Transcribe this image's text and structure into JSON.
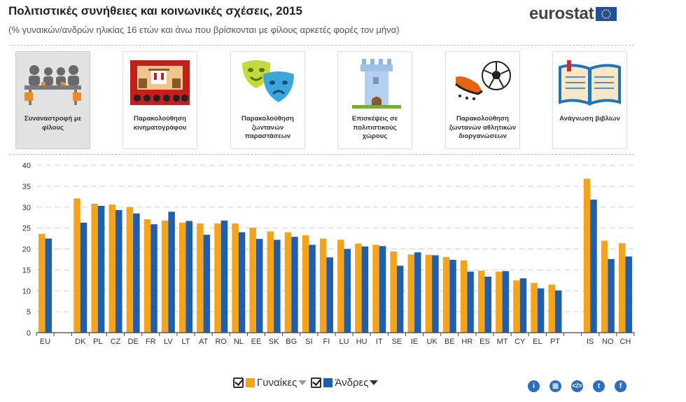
{
  "header": {
    "title": "Πολιτιστικές συνήθειες και κοινωνικές σχέσεις, 2015",
    "subtitle": "(% γυναικών/ανδρών ηλικίας 16 ετών και άνω που βρίσκονται με φίλους αρκετές φορές τον μήνα)",
    "logo_text": "eurostat"
  },
  "categories": [
    {
      "label": "Συναναστροφή με φίλους",
      "icon": "friends-meeting-icon",
      "active": true
    },
    {
      "label": "Παρακολούθηση κινηματογράφου",
      "icon": "cinema-icon",
      "active": false
    },
    {
      "label": "Παρακολούθηση ζωντανών παραστάσεων",
      "icon": "theatre-masks-icon",
      "active": false
    },
    {
      "label": "Επισκέψεις σε πολιτιστικούς χώρους",
      "icon": "tower-icon",
      "active": false
    },
    {
      "label": "Παρακολούθηση ζωντανών αθλητικών διοργανώσεων",
      "icon": "football-icon",
      "active": false
    },
    {
      "label": "Ανάγνωση βιβλίων",
      "icon": "open-book-icon",
      "active": false
    }
  ],
  "legend": {
    "women_label": "Γυναίκες",
    "men_label": "Άνδρες"
  },
  "colors": {
    "women": "#f5a31a",
    "men": "#1f5fae",
    "grid": "#cfcfcf"
  },
  "social_icons": [
    "info-icon",
    "table-icon",
    "embed-icon",
    "twitter-icon",
    "facebook-icon"
  ],
  "chart_data": {
    "type": "bar",
    "categories": [
      "EU",
      "DK",
      "PL",
      "CZ",
      "DE",
      "FR",
      "LV",
      "LT",
      "AT",
      "RO",
      "NL",
      "EE",
      "SK",
      "BG",
      "SI",
      "FI",
      "LU",
      "HU",
      "IT",
      "SE",
      "IE",
      "UK",
      "BE",
      "HR",
      "ES",
      "MT",
      "CY",
      "EL",
      "PT",
      "IS",
      "NO",
      "CH"
    ],
    "gaps_after": [
      "EU",
      "PT"
    ],
    "series": [
      {
        "name": "Γυναίκες",
        "values": [
          23.6,
          32.1,
          30.8,
          30.6,
          30.0,
          27.1,
          26.8,
          26.3,
          26.1,
          26.1,
          26.1,
          25.1,
          24.2,
          24.0,
          23.3,
          22.5,
          22.2,
          21.3,
          21.0,
          19.4,
          18.7,
          18.6,
          18.1,
          17.3,
          14.8,
          14.6,
          12.5,
          11.9,
          11.5,
          36.8,
          22.0,
          21.4
        ]
      },
      {
        "name": "Άνδρες",
        "values": [
          22.5,
          26.3,
          30.3,
          29.3,
          28.5,
          25.9,
          28.9,
          26.7,
          23.4,
          26.8,
          24.0,
          22.4,
          22.2,
          22.9,
          21.0,
          18.0,
          20.0,
          20.6,
          20.7,
          16.0,
          19.2,
          18.5,
          17.4,
          14.6,
          13.4,
          14.7,
          13.0,
          10.6,
          10.1,
          31.8,
          17.6,
          18.2
        ]
      }
    ],
    "ylim": [
      0,
      40
    ],
    "yticks": [
      0,
      5,
      10,
      15,
      20,
      25,
      30,
      35,
      40
    ],
    "grid": true
  }
}
